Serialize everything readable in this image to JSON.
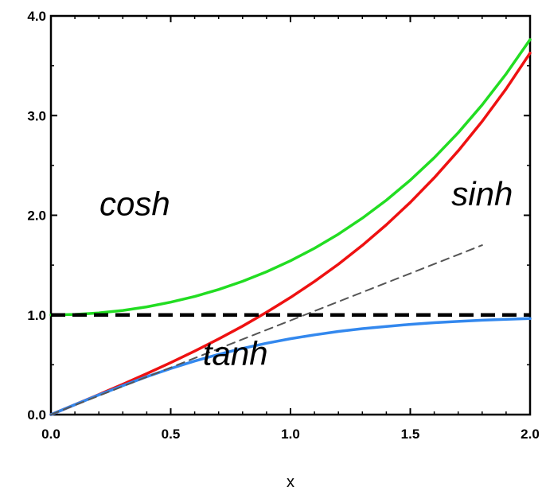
{
  "chart_data": {
    "type": "line",
    "title": "",
    "xlabel": "x",
    "ylabel": "",
    "xlim": [
      0.0,
      2.0
    ],
    "ylim": [
      0.0,
      4.0
    ],
    "x_ticks": [
      "0.0",
      "0.5",
      "1.0",
      "1.5",
      "2.0"
    ],
    "y_ticks": [
      "0.0",
      "1.0",
      "2.0",
      "3.0",
      "4.0"
    ],
    "grid": false,
    "legend": "none",
    "series": [
      {
        "label": "cosh",
        "color": "#22dd22",
        "style": "solid",
        "x": [
          0.0,
          0.1,
          0.2,
          0.3,
          0.4,
          0.5,
          0.6,
          0.7,
          0.8,
          0.9,
          1.0,
          1.1,
          1.2,
          1.3,
          1.4,
          1.5,
          1.6,
          1.7,
          1.8,
          1.9,
          2.0
        ],
        "y": [
          1.0,
          1.005,
          1.02,
          1.045,
          1.081,
          1.128,
          1.185,
          1.255,
          1.337,
          1.433,
          1.543,
          1.669,
          1.811,
          1.971,
          2.151,
          2.352,
          2.577,
          2.828,
          3.107,
          3.418,
          3.762
        ]
      },
      {
        "label": "sinh",
        "color": "#ee1111",
        "style": "solid",
        "x": [
          0.0,
          0.1,
          0.2,
          0.3,
          0.4,
          0.5,
          0.6,
          0.7,
          0.8,
          0.9,
          1.0,
          1.1,
          1.2,
          1.3,
          1.4,
          1.5,
          1.6,
          1.7,
          1.8,
          1.9,
          2.0
        ],
        "y": [
          0.0,
          0.1,
          0.201,
          0.305,
          0.411,
          0.521,
          0.637,
          0.759,
          0.888,
          1.027,
          1.175,
          1.336,
          1.509,
          1.698,
          1.904,
          2.129,
          2.376,
          2.646,
          2.942,
          3.268,
          3.627
        ]
      },
      {
        "label": "tanh",
        "color": "#3388ee",
        "style": "solid",
        "x": [
          0.0,
          0.1,
          0.2,
          0.3,
          0.4,
          0.5,
          0.6,
          0.7,
          0.8,
          0.9,
          1.0,
          1.1,
          1.2,
          1.3,
          1.4,
          1.5,
          1.6,
          1.7,
          1.8,
          1.9,
          2.0
        ],
        "y": [
          0.0,
          0.1,
          0.197,
          0.291,
          0.38,
          0.462,
          0.537,
          0.604,
          0.664,
          0.716,
          0.762,
          0.8,
          0.834,
          0.862,
          0.885,
          0.905,
          0.922,
          0.935,
          0.947,
          0.956,
          0.964
        ]
      },
      {
        "label": "",
        "color": "#000000",
        "style": "dashed",
        "x": [
          0.0,
          2.0
        ],
        "y": [
          1.0,
          1.0
        ]
      },
      {
        "label": "",
        "color": "#555555",
        "style": "dashed-thin",
        "x": [
          0.0,
          1.8
        ],
        "y": [
          0.0,
          1.7
        ]
      }
    ],
    "annotations": [
      {
        "text": "cosh",
        "x": 0.35,
        "y": 2.0
      },
      {
        "text": "sinh",
        "x": 1.8,
        "y": 2.1
      },
      {
        "text": "tanh",
        "x": 0.77,
        "y": 0.5
      }
    ]
  }
}
